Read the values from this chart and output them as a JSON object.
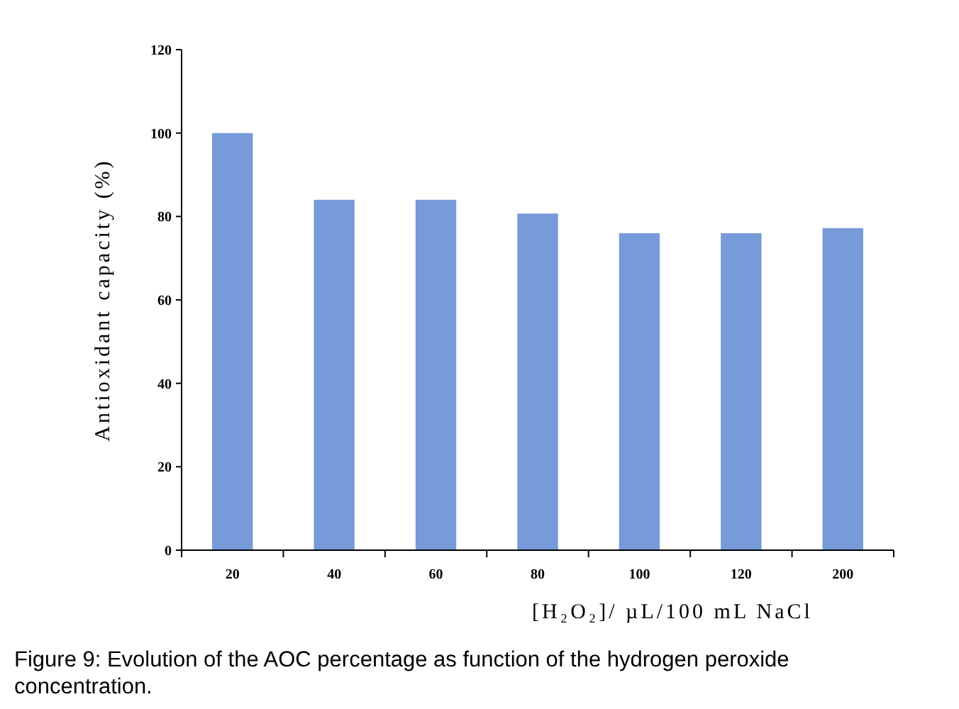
{
  "chart_data": {
    "type": "bar",
    "xlabel": "[H₂O₂]/ µL/100 mL NaCl",
    "ylabel": "Antioxidant capacity (%)",
    "categories": [
      "20",
      "40",
      "60",
      "80",
      "100",
      "120",
      "200"
    ],
    "values": [
      100,
      84,
      84,
      80.7,
      76,
      76,
      77.2
    ],
    "color": "#779ad8",
    "ylim": [
      0,
      120
    ],
    "yticks": [
      0,
      20,
      40,
      60,
      80,
      100,
      120
    ],
    "grid": false,
    "annotations": [
      "Figure 9: Evolution of the AOC percentage as function of the hydrogen peroxide concentration."
    ]
  }
}
